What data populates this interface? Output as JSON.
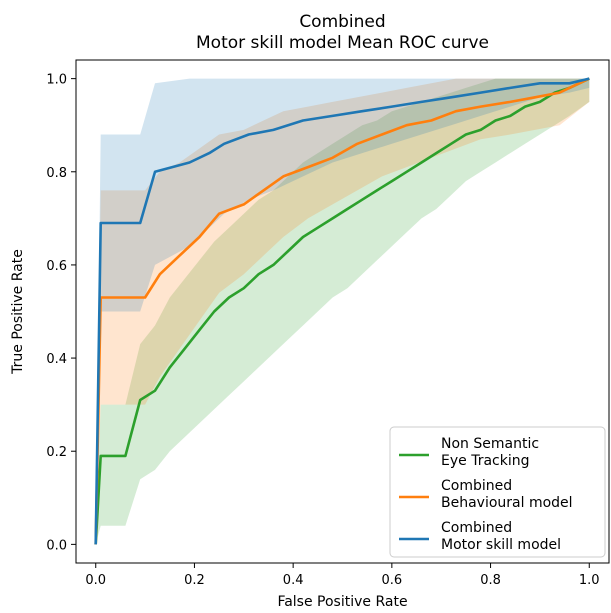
{
  "chart_data": {
    "type": "line",
    "title_lines": [
      "Combined",
      "Motor skill model Mean ROC curve"
    ],
    "xlabel": "False Positive Rate",
    "ylabel": "True Positive Rate",
    "xlim": [
      -0.04,
      1.04
    ],
    "ylim": [
      -0.04,
      1.04
    ],
    "xticks": [
      0.0,
      0.2,
      0.4,
      0.6,
      0.8,
      1.0
    ],
    "xtick_labels": [
      "0.0",
      "0.2",
      "0.4",
      "0.6",
      "0.8",
      "1.0"
    ],
    "yticks": [
      0.0,
      0.2,
      0.4,
      0.6,
      0.8,
      1.0
    ],
    "ytick_labels": [
      "0.0",
      "0.2",
      "0.4",
      "0.6",
      "0.8",
      "1.0"
    ],
    "grid": false,
    "legend_position": "lower-right",
    "series": [
      {
        "name_lines": [
          "Non Semantic",
          " Eye Tracking"
        ],
        "color": "#2ca02c",
        "x": [
          0.0,
          0.01,
          0.06,
          0.09,
          0.12,
          0.15,
          0.18,
          0.21,
          0.24,
          0.27,
          0.3,
          0.33,
          0.36,
          0.39,
          0.42,
          0.45,
          0.48,
          0.51,
          0.54,
          0.57,
          0.6,
          0.63,
          0.66,
          0.69,
          0.72,
          0.75,
          0.78,
          0.81,
          0.84,
          0.87,
          0.9,
          0.93,
          0.96,
          1.0
        ],
        "y": [
          0.0,
          0.19,
          0.19,
          0.31,
          0.33,
          0.38,
          0.42,
          0.46,
          0.5,
          0.53,
          0.55,
          0.58,
          0.6,
          0.63,
          0.66,
          0.68,
          0.7,
          0.72,
          0.74,
          0.76,
          0.78,
          0.8,
          0.82,
          0.84,
          0.86,
          0.88,
          0.89,
          0.91,
          0.92,
          0.94,
          0.95,
          0.97,
          0.98,
          1.0
        ],
        "lower": [
          0.0,
          0.04,
          0.04,
          0.14,
          0.16,
          0.2,
          0.23,
          0.26,
          0.29,
          0.32,
          0.35,
          0.38,
          0.41,
          0.44,
          0.47,
          0.5,
          0.53,
          0.55,
          0.58,
          0.61,
          0.64,
          0.67,
          0.7,
          0.72,
          0.75,
          0.78,
          0.8,
          0.82,
          0.84,
          0.86,
          0.88,
          0.9,
          0.92,
          0.95
        ],
        "upper": [
          0.0,
          0.3,
          0.3,
          0.43,
          0.47,
          0.53,
          0.57,
          0.61,
          0.65,
          0.68,
          0.71,
          0.74,
          0.76,
          0.79,
          0.82,
          0.84,
          0.86,
          0.88,
          0.9,
          0.91,
          0.93,
          0.94,
          0.95,
          0.96,
          0.97,
          0.98,
          0.99,
          1.0,
          1.0,
          1.0,
          1.0,
          1.0,
          1.0,
          1.0
        ]
      },
      {
        "name_lines": [
          "Combined",
          " Behavioural model"
        ],
        "color": "#ff7f0e",
        "x": [
          0.0,
          0.01,
          0.1,
          0.13,
          0.17,
          0.21,
          0.25,
          0.3,
          0.34,
          0.38,
          0.43,
          0.48,
          0.53,
          0.58,
          0.63,
          0.68,
          0.73,
          0.78,
          0.84,
          0.89,
          0.94,
          1.0
        ],
        "y": [
          0.0,
          0.53,
          0.53,
          0.58,
          0.62,
          0.66,
          0.71,
          0.73,
          0.76,
          0.79,
          0.81,
          0.83,
          0.86,
          0.88,
          0.9,
          0.91,
          0.93,
          0.94,
          0.95,
          0.96,
          0.97,
          1.0
        ],
        "lower": [
          0.0,
          0.3,
          0.3,
          0.36,
          0.42,
          0.48,
          0.54,
          0.58,
          0.62,
          0.66,
          0.7,
          0.73,
          0.76,
          0.79,
          0.81,
          0.83,
          0.85,
          0.87,
          0.88,
          0.89,
          0.9,
          0.95
        ],
        "upper": [
          0.0,
          0.76,
          0.76,
          0.8,
          0.82,
          0.85,
          0.88,
          0.89,
          0.91,
          0.93,
          0.94,
          0.95,
          0.96,
          0.97,
          0.98,
          0.99,
          1.0,
          1.0,
          1.0,
          1.0,
          1.0,
          1.0
        ]
      },
      {
        "name_lines": [
          "Combined",
          " Motor skill model"
        ],
        "color": "#1f77b4",
        "x": [
          0.0,
          0.01,
          0.09,
          0.12,
          0.19,
          0.23,
          0.26,
          0.31,
          0.36,
          0.42,
          0.48,
          0.54,
          0.6,
          0.66,
          0.72,
          0.78,
          0.84,
          0.9,
          0.96,
          1.0
        ],
        "y": [
          0.0,
          0.69,
          0.69,
          0.8,
          0.82,
          0.84,
          0.86,
          0.88,
          0.89,
          0.91,
          0.92,
          0.93,
          0.94,
          0.95,
          0.96,
          0.97,
          0.98,
          0.99,
          0.99,
          1.0
        ],
        "lower": [
          0.0,
          0.5,
          0.5,
          0.6,
          0.64,
          0.68,
          0.71,
          0.74,
          0.76,
          0.79,
          0.82,
          0.84,
          0.86,
          0.88,
          0.9,
          0.92,
          0.94,
          0.96,
          0.97,
          0.98
        ],
        "upper": [
          0.0,
          0.88,
          0.88,
          0.99,
          1.0,
          1.0,
          1.0,
          1.0,
          1.0,
          1.0,
          1.0,
          1.0,
          1.0,
          1.0,
          1.0,
          1.0,
          1.0,
          1.0,
          1.0,
          1.0
        ]
      }
    ]
  }
}
